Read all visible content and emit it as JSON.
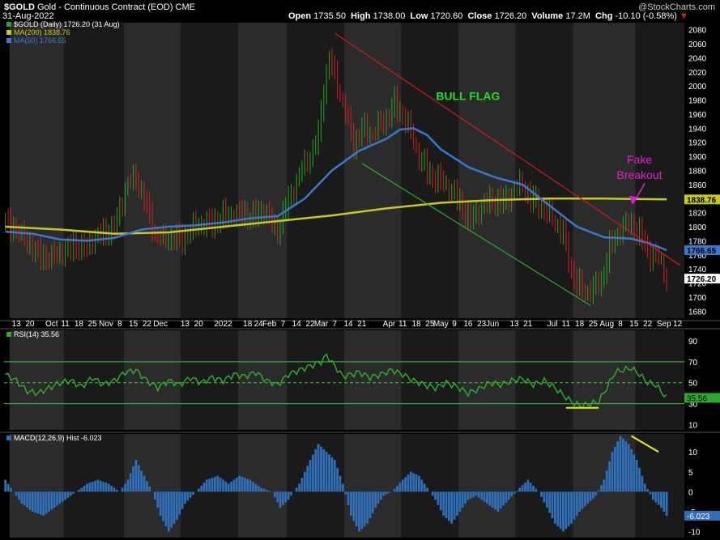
{
  "header": {
    "symbol": "$GOLD",
    "name": "Gold - Continuous Contract (EOD)",
    "exchange": "CME",
    "date": "31-Aug-2022",
    "watermark": "@StockCharts.com",
    "open_label": "Open",
    "open": "1735.50",
    "high_label": "High",
    "high": "1738.00",
    "low_label": "Low",
    "low": "1720.60",
    "close_label": "Close",
    "close": "1726.20",
    "volume_label": "Volume",
    "volume": "17.2M",
    "chg_label": "Chg",
    "chg": "-10.10 (-0.58%)"
  },
  "colors": {
    "background": "#000000",
    "band_dark": "#1a1a1a",
    "band_light": "#2b2b2b",
    "up": "#1fa51f",
    "down": "#d02020",
    "ma200": "#c8c820",
    "ma50": "#3a78d0",
    "rsi_line": "#2ea82e",
    "rsi_guides": "#3fc43f",
    "macd_hist": "#2f6fb8",
    "channel_top": "#cc1c1c",
    "channel_bottom": "#27b327",
    "annotation_bull": "#22dd22",
    "annotation_fake": "#e020d0",
    "highlight": "#f0f000",
    "axis_text": "#ffffff"
  },
  "chart_data": [
    {
      "id": "price",
      "type": "candlestick",
      "legend": [
        "$GOLD (Daily) 1726.20 (31 Aug)",
        "MA(200) 1838.76",
        "MA(50) 1766.65"
      ],
      "y_ticks": [
        1680,
        1700,
        1720,
        1740,
        1760,
        1780,
        1800,
        1820,
        1840,
        1860,
        1880,
        1900,
        1920,
        1940,
        1960,
        1980,
        2000,
        2020,
        2040,
        2060,
        2080
      ],
      "ylim": [
        1670,
        2090
      ],
      "last_values": [
        {
          "label": "1838.76",
          "value": 1838.76,
          "color": "#c8c820"
        },
        {
          "label": "1766.65",
          "value": 1766.65,
          "color": "#3a78d0"
        },
        {
          "label": "1726.20",
          "value": 1726.2,
          "color": "#ffffff"
        }
      ],
      "x_tick_labels": [
        {
          "label": "13",
          "i": 4
        },
        {
          "label": "20",
          "i": 9
        },
        {
          "label": "Oct",
          "i": 17
        },
        {
          "label": "11",
          "i": 22
        },
        {
          "label": "18",
          "i": 27
        },
        {
          "label": "25",
          "i": 32
        },
        {
          "label": "Nov",
          "i": 37
        },
        {
          "label": "8",
          "i": 42
        },
        {
          "label": "15",
          "i": 47
        },
        {
          "label": "22",
          "i": 52
        },
        {
          "label": "Dec",
          "i": 57
        },
        {
          "label": "13",
          "i": 66
        },
        {
          "label": "20",
          "i": 71
        },
        {
          "label": "2022",
          "i": 80
        },
        {
          "label": "18",
          "i": 89
        },
        {
          "label": "24",
          "i": 93
        },
        {
          "label": "Feb",
          "i": 97
        },
        {
          "label": "7",
          "i": 102
        },
        {
          "label": "14",
          "i": 107
        },
        {
          "label": "22",
          "i": 112
        },
        {
          "label": "Mar",
          "i": 116
        },
        {
          "label": "7",
          "i": 121
        },
        {
          "label": "14",
          "i": 126
        },
        {
          "label": "21",
          "i": 131
        },
        {
          "label": "Apr",
          "i": 141
        },
        {
          "label": "11",
          "i": 146
        },
        {
          "label": "18",
          "i": 151
        },
        {
          "label": "25",
          "i": 156
        },
        {
          "label": "May",
          "i": 160
        },
        {
          "label": "9",
          "i": 165
        },
        {
          "label": "16",
          "i": 170
        },
        {
          "label": "23",
          "i": 175
        },
        {
          "label": "Jun",
          "i": 179
        },
        {
          "label": "13",
          "i": 187
        },
        {
          "label": "21",
          "i": 192
        },
        {
          "label": "Jul",
          "i": 201
        },
        {
          "label": "11",
          "i": 206
        },
        {
          "label": "18",
          "i": 211
        },
        {
          "label": "25",
          "i": 216
        },
        {
          "label": "Aug",
          "i": 221
        },
        {
          "label": "8",
          "i": 226
        },
        {
          "label": "15",
          "i": 231
        },
        {
          "label": "22",
          "i": 236
        },
        {
          "label": "Sep",
          "i": 242
        },
        {
          "label": "12",
          "i": 247
        }
      ],
      "band_boundaries": [
        2,
        22,
        44,
        65,
        86,
        104,
        125,
        146,
        167,
        188,
        209,
        232
      ],
      "close_anchors": [
        [
          0,
          1810
        ],
        [
          5,
          1790
        ],
        [
          10,
          1770
        ],
        [
          15,
          1755
        ],
        [
          20,
          1760
        ],
        [
          25,
          1775
        ],
        [
          30,
          1770
        ],
        [
          35,
          1790
        ],
        [
          40,
          1800
        ],
        [
          45,
          1860
        ],
        [
          48,
          1870
        ],
        [
          52,
          1830
        ],
        [
          55,
          1790
        ],
        [
          58,
          1780
        ],
        [
          61,
          1785
        ],
        [
          65,
          1785
        ],
        [
          70,
          1800
        ],
        [
          75,
          1805
        ],
        [
          80,
          1815
        ],
        [
          85,
          1815
        ],
        [
          88,
          1820
        ],
        [
          91,
          1815
        ],
        [
          95,
          1825
        ],
        [
          98,
          1800
        ],
        [
          100,
          1795
        ],
        [
          103,
          1830
        ],
        [
          106,
          1855
        ],
        [
          109,
          1880
        ],
        [
          112,
          1900
        ],
        [
          115,
          1930
        ],
        [
          117,
          2000
        ],
        [
          119,
          2040
        ],
        [
          122,
          2000
        ],
        [
          125,
          1960
        ],
        [
          128,
          1920
        ],
        [
          131,
          1940
        ],
        [
          135,
          1930
        ],
        [
          139,
          1950
        ],
        [
          143,
          1975
        ],
        [
          146,
          1960
        ],
        [
          149,
          1930
        ],
        [
          152,
          1900
        ],
        [
          155,
          1880
        ],
        [
          158,
          1870
        ],
        [
          161,
          1860
        ],
        [
          164,
          1850
        ],
        [
          167,
          1835
        ],
        [
          171,
          1810
        ],
        [
          175,
          1825
        ],
        [
          179,
          1840
        ],
        [
          183,
          1835
        ],
        [
          187,
          1850
        ],
        [
          190,
          1860
        ],
        [
          193,
          1840
        ],
        [
          196,
          1835
        ],
        [
          199,
          1820
        ],
        [
          202,
          1805
        ],
        [
          205,
          1790
        ],
        [
          208,
          1740
        ],
        [
          210,
          1720
        ],
        [
          213,
          1705
        ],
        [
          216,
          1710
        ],
        [
          219,
          1725
        ],
        [
          222,
          1770
        ],
        [
          225,
          1790
        ],
        [
          228,
          1800
        ],
        [
          230,
          1805
        ],
        [
          232,
          1795
        ],
        [
          234,
          1785
        ],
        [
          237,
          1760
        ],
        [
          240,
          1755
        ],
        [
          243,
          1726
        ]
      ],
      "ma200": [
        [
          0,
          1800
        ],
        [
          20,
          1796
        ],
        [
          40,
          1790
        ],
        [
          60,
          1792
        ],
        [
          80,
          1800
        ],
        [
          100,
          1808
        ],
        [
          120,
          1816
        ],
        [
          140,
          1826
        ],
        [
          160,
          1834
        ],
        [
          180,
          1838
        ],
        [
          200,
          1840
        ],
        [
          220,
          1840
        ],
        [
          243,
          1838.76
        ]
      ],
      "ma50": [
        [
          0,
          1793
        ],
        [
          10,
          1790
        ],
        [
          20,
          1782
        ],
        [
          30,
          1780
        ],
        [
          40,
          1784
        ],
        [
          50,
          1796
        ],
        [
          60,
          1800
        ],
        [
          70,
          1802
        ],
        [
          80,
          1806
        ],
        [
          90,
          1812
        ],
        [
          100,
          1815
        ],
        [
          110,
          1840
        ],
        [
          120,
          1880
        ],
        [
          130,
          1908
        ],
        [
          140,
          1925
        ],
        [
          145,
          1938
        ],
        [
          150,
          1940
        ],
        [
          155,
          1930
        ],
        [
          160,
          1910
        ],
        [
          170,
          1885
        ],
        [
          180,
          1870
        ],
        [
          190,
          1860
        ],
        [
          200,
          1830
        ],
        [
          210,
          1800
        ],
        [
          220,
          1785
        ],
        [
          230,
          1783
        ],
        [
          236,
          1777
        ],
        [
          243,
          1766.65
        ]
      ],
      "annotations": [
        {
          "text": "BULL FLAG",
          "i": 170,
          "value": 1980,
          "color": "#22dd22"
        },
        {
          "text": "Fake",
          "i": 233,
          "value": 1890,
          "color": "#e020d0"
        },
        {
          "text": "Breakout",
          "i": 233,
          "value": 1868,
          "color": "#e020d0"
        }
      ],
      "channel_top": [
        [
          121,
          2075
        ],
        [
          248,
          1745
        ]
      ],
      "channel_bottom": [
        [
          131,
          1890
        ],
        [
          215,
          1688
        ]
      ],
      "fake_breakout_arrow": {
        "from": [
          235,
          1862
        ],
        "to": [
          231,
          1835
        ]
      }
    },
    {
      "id": "rsi",
      "type": "line",
      "legend": "RSI(14) 35.56",
      "y_ticks": [
        10,
        30,
        50,
        70,
        90
      ],
      "ylim": [
        5,
        100
      ],
      "guides": [
        30,
        50,
        70
      ],
      "last_value": {
        "label": "35.56",
        "value": 35.56
      },
      "anchors": [
        [
          0,
          58
        ],
        [
          4,
          52
        ],
        [
          8,
          42
        ],
        [
          12,
          40
        ],
        [
          16,
          45
        ],
        [
          20,
          50
        ],
        [
          24,
          52
        ],
        [
          28,
          46
        ],
        [
          32,
          55
        ],
        [
          36,
          48
        ],
        [
          40,
          52
        ],
        [
          44,
          60
        ],
        [
          48,
          62
        ],
        [
          52,
          52
        ],
        [
          56,
          45
        ],
        [
          60,
          52
        ],
        [
          64,
          48
        ],
        [
          68,
          55
        ],
        [
          72,
          50
        ],
        [
          76,
          55
        ],
        [
          80,
          52
        ],
        [
          84,
          58
        ],
        [
          88,
          56
        ],
        [
          92,
          60
        ],
        [
          96,
          52
        ],
        [
          100,
          48
        ],
        [
          104,
          58
        ],
        [
          108,
          62
        ],
        [
          112,
          66
        ],
        [
          116,
          70
        ],
        [
          118,
          76
        ],
        [
          121,
          66
        ],
        [
          124,
          56
        ],
        [
          127,
          58
        ],
        [
          130,
          60
        ],
        [
          134,
          55
        ],
        [
          138,
          58
        ],
        [
          142,
          62
        ],
        [
          146,
          58
        ],
        [
          150,
          52
        ],
        [
          154,
          48
        ],
        [
          158,
          45
        ],
        [
          162,
          50
        ],
        [
          166,
          46
        ],
        [
          170,
          40
        ],
        [
          174,
          44
        ],
        [
          178,
          50
        ],
        [
          182,
          48
        ],
        [
          186,
          52
        ],
        [
          190,
          54
        ],
        [
          194,
          48
        ],
        [
          198,
          52
        ],
        [
          202,
          45
        ],
        [
          206,
          36
        ],
        [
          209,
          30
        ],
        [
          212,
          28
        ],
        [
          215,
          30
        ],
        [
          218,
          32
        ],
        [
          221,
          45
        ],
        [
          224,
          60
        ],
        [
          227,
          62
        ],
        [
          230,
          64
        ],
        [
          233,
          58
        ],
        [
          236,
          50
        ],
        [
          239,
          48
        ],
        [
          243,
          35.56
        ]
      ],
      "highlight": [
        [
          206,
          26
        ],
        [
          218,
          26
        ]
      ]
    },
    {
      "id": "macd",
      "type": "bar",
      "legend": "MACD(12,26,9) Hist -6.023",
      "y_ticks": [
        -10,
        -5,
        0,
        5,
        10
      ],
      "ylim": [
        -11.5,
        14.5
      ],
      "last_value": {
        "label": "-6.023",
        "value": -6.023
      },
      "anchors": [
        [
          0,
          3
        ],
        [
          3,
          0
        ],
        [
          6,
          -3
        ],
        [
          10,
          -5
        ],
        [
          14,
          -6
        ],
        [
          18,
          -4
        ],
        [
          22,
          -2
        ],
        [
          26,
          0
        ],
        [
          30,
          2
        ],
        [
          34,
          3
        ],
        [
          38,
          2
        ],
        [
          42,
          0
        ],
        [
          45,
          3
        ],
        [
          48,
          8
        ],
        [
          51,
          4
        ],
        [
          54,
          0
        ],
        [
          57,
          -6
        ],
        [
          60,
          -10
        ],
        [
          63,
          -7
        ],
        [
          66,
          -3
        ],
        [
          70,
          0
        ],
        [
          74,
          3
        ],
        [
          78,
          4
        ],
        [
          82,
          2
        ],
        [
          86,
          4
        ],
        [
          90,
          3
        ],
        [
          94,
          1
        ],
        [
          98,
          0
        ],
        [
          101,
          -4
        ],
        [
          104,
          -2
        ],
        [
          108,
          2
        ],
        [
          112,
          8
        ],
        [
          115,
          12
        ],
        [
          118,
          10
        ],
        [
          121,
          8
        ],
        [
          124,
          2
        ],
        [
          127,
          -6
        ],
        [
          130,
          -10
        ],
        [
          133,
          -8
        ],
        [
          136,
          -4
        ],
        [
          139,
          -1
        ],
        [
          142,
          0
        ],
        [
          146,
          3
        ],
        [
          149,
          5
        ],
        [
          152,
          4
        ],
        [
          155,
          1
        ],
        [
          158,
          -2
        ],
        [
          161,
          -6
        ],
        [
          164,
          -8
        ],
        [
          167,
          -5
        ],
        [
          170,
          -2
        ],
        [
          173,
          -1
        ],
        [
          177,
          -3
        ],
        [
          181,
          -5
        ],
        [
          185,
          -2
        ],
        [
          189,
          1
        ],
        [
          192,
          3
        ],
        [
          196,
          0
        ],
        [
          199,
          -4
        ],
        [
          202,
          -8
        ],
        [
          205,
          -10
        ],
        [
          208,
          -8
        ],
        [
          211,
          -5
        ],
        [
          214,
          -3
        ],
        [
          217,
          -1
        ],
        [
          220,
          3
        ],
        [
          223,
          10
        ],
        [
          226,
          14
        ],
        [
          229,
          12
        ],
        [
          232,
          8
        ],
        [
          235,
          2
        ],
        [
          238,
          -2
        ],
        [
          241,
          -4
        ],
        [
          243,
          -6.023
        ]
      ],
      "highlight": [
        [
          230,
          14
        ],
        [
          240,
          10
        ]
      ]
    }
  ]
}
